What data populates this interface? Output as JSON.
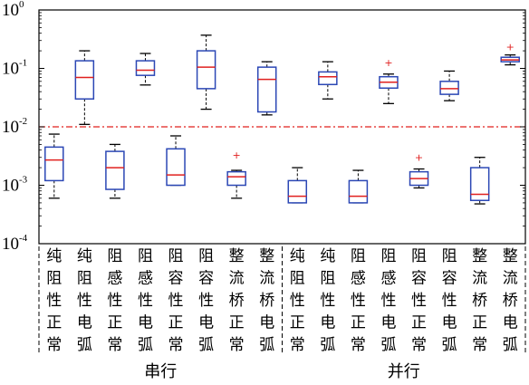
{
  "chart_data": {
    "type": "box",
    "yscale": "log",
    "ylim": [
      0.0001,
      1
    ],
    "yticks": [
      {
        "value": 1,
        "label": "10",
        "exp": "0"
      },
      {
        "value": 0.1,
        "label": "10",
        "exp": "-1"
      },
      {
        "value": 0.01,
        "label": "10",
        "exp": "-2"
      },
      {
        "value": 0.001,
        "label": "10",
        "exp": "-3"
      },
      {
        "value": 0.0001,
        "label": "10",
        "exp": "-4"
      }
    ],
    "threshold": 0.01,
    "groups": [
      {
        "label": "串行",
        "from": 0,
        "to": 7
      },
      {
        "label": "并行",
        "from": 8,
        "to": 15
      }
    ],
    "categories": [
      "纯阻性正常",
      "纯阻性电弧",
      "阻感性正常",
      "阻感性电弧",
      "阻容性正常",
      "阻容性电弧",
      "整流桥正常",
      "整流桥电弧",
      "纯阻性正常",
      "纯阻性电弧",
      "阻感性正常",
      "阻感性电弧",
      "阻容性正常",
      "阻容性电弧",
      "整流桥正常",
      "整流桥电弧"
    ],
    "boxes": [
      {
        "wmin": 0.0006,
        "q1": 0.0012,
        "median": 0.0027,
        "q3": 0.0045,
        "wmax": 0.0075,
        "outliers": []
      },
      {
        "wmin": 0.011,
        "q1": 0.03,
        "median": 0.07,
        "q3": 0.135,
        "wmax": 0.2,
        "outliers": []
      },
      {
        "wmin": 0.0006,
        "q1": 0.00085,
        "median": 0.002,
        "q3": 0.0038,
        "wmax": 0.005,
        "outliers": []
      },
      {
        "wmin": 0.052,
        "q1": 0.076,
        "median": 0.093,
        "q3": 0.135,
        "wmax": 0.18,
        "outliers": []
      },
      {
        "wmin": 0.001,
        "q1": 0.001,
        "median": 0.0015,
        "q3": 0.0042,
        "wmax": 0.007,
        "outliers": []
      },
      {
        "wmin": 0.02,
        "q1": 0.045,
        "median": 0.105,
        "q3": 0.2,
        "wmax": 0.37,
        "outliers": []
      },
      {
        "wmin": 0.0006,
        "q1": 0.001,
        "median": 0.0014,
        "q3": 0.0017,
        "wmax": 0.0018,
        "outliers": [
          0.0033
        ]
      },
      {
        "wmin": 0.016,
        "q1": 0.018,
        "median": 0.065,
        "q3": 0.105,
        "wmax": 0.13,
        "outliers": []
      },
      {
        "wmin": 0.0005,
        "q1": 0.0005,
        "median": 0.00065,
        "q3": 0.0012,
        "wmax": 0.002,
        "outliers": []
      },
      {
        "wmin": 0.03,
        "q1": 0.053,
        "median": 0.072,
        "q3": 0.087,
        "wmax": 0.13,
        "outliers": []
      },
      {
        "wmin": 0.0005,
        "q1": 0.0005,
        "median": 0.00065,
        "q3": 0.0012,
        "wmax": 0.0018,
        "outliers": []
      },
      {
        "wmin": 0.025,
        "q1": 0.046,
        "median": 0.058,
        "q3": 0.072,
        "wmax": 0.08,
        "outliers": [
          0.125
        ]
      },
      {
        "wmin": 0.0009,
        "q1": 0.001,
        "median": 0.0013,
        "q3": 0.0017,
        "wmax": 0.0019,
        "outliers": [
          0.003
        ]
      },
      {
        "wmin": 0.028,
        "q1": 0.036,
        "median": 0.045,
        "q3": 0.06,
        "wmax": 0.09,
        "outliers": []
      },
      {
        "wmin": 0.00048,
        "q1": 0.00055,
        "median": 0.0007,
        "q3": 0.002,
        "wmax": 0.003,
        "outliers": []
      },
      {
        "wmin": 0.115,
        "q1": 0.13,
        "median": 0.14,
        "q3": 0.155,
        "wmax": 0.17,
        "outliers": [
          0.235
        ]
      }
    ],
    "colors": {
      "box": "#2b47b5",
      "median": "#e0201f",
      "whisker": "#000000",
      "outlier": "#e0201f",
      "threshold": "#e0201f"
    },
    "legend": "none",
    "grid": false
  }
}
